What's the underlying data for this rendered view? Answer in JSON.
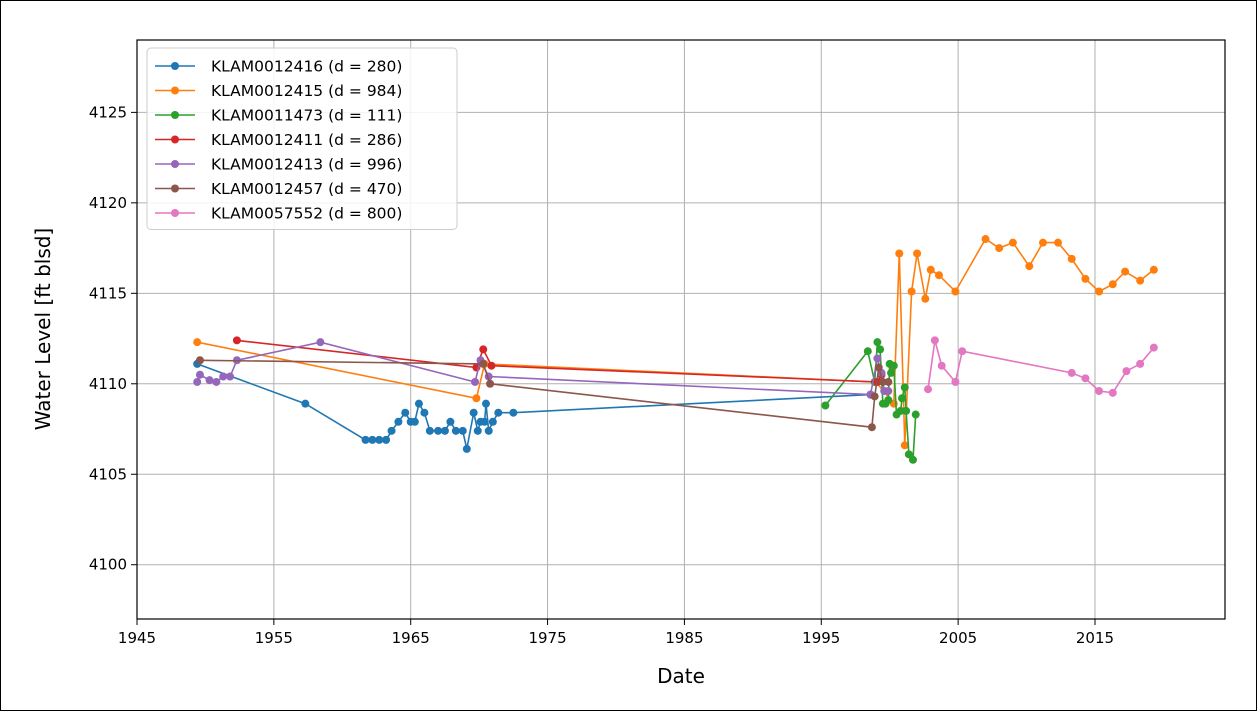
{
  "chart_data": {
    "type": "line",
    "title": "",
    "xlabel": "Date",
    "ylabel": "Water Level [ft blsd]",
    "xlim": [
      1945,
      2024.5
    ],
    "ylim": [
      4097,
      4129
    ],
    "x_ticks": [
      1945,
      1955,
      1965,
      1975,
      1985,
      1995,
      2005,
      2015
    ],
    "y_ticks": [
      4100,
      4105,
      4110,
      4115,
      4120,
      4125
    ],
    "grid": true,
    "legend_position": "upper-left",
    "marker": "circle",
    "series": [
      {
        "name": "KLAM0012416 (d = 280)",
        "color": "#1f77b4",
        "points": [
          [
            1949.4,
            4111.1
          ],
          [
            1957.3,
            4108.9
          ],
          [
            1961.7,
            4106.9
          ],
          [
            1962.2,
            4106.9
          ],
          [
            1962.7,
            4106.9
          ],
          [
            1963.2,
            4106.9
          ],
          [
            1963.6,
            4107.4
          ],
          [
            1964.1,
            4107.9
          ],
          [
            1964.6,
            4108.4
          ],
          [
            1965.0,
            4107.9
          ],
          [
            1965.3,
            4107.9
          ],
          [
            1965.6,
            4108.9
          ],
          [
            1966.0,
            4108.4
          ],
          [
            1966.4,
            4107.4
          ],
          [
            1967.0,
            4107.4
          ],
          [
            1967.5,
            4107.4
          ],
          [
            1967.9,
            4107.9
          ],
          [
            1968.3,
            4107.4
          ],
          [
            1968.8,
            4107.4
          ],
          [
            1969.1,
            4106.4
          ],
          [
            1969.6,
            4108.4
          ],
          [
            1969.9,
            4107.4
          ],
          [
            1970.1,
            4107.9
          ],
          [
            1970.4,
            4107.9
          ],
          [
            1970.5,
            4108.9
          ],
          [
            1970.7,
            4107.4
          ],
          [
            1971.0,
            4107.9
          ],
          [
            1971.4,
            4108.4
          ],
          [
            1972.5,
            4108.4
          ],
          [
            1998.6,
            4109.4
          ]
        ]
      },
      {
        "name": "KLAM0012415 (d = 984)",
        "color": "#ff7f0e",
        "points": [
          [
            1949.4,
            4112.3
          ],
          [
            1969.8,
            4109.2
          ],
          [
            1970.4,
            4111.1
          ],
          [
            1999.0,
            4110.1
          ],
          [
            2000.3,
            4108.9
          ],
          [
            2000.7,
            4117.2
          ],
          [
            2001.1,
            4106.6
          ],
          [
            2001.6,
            4115.1
          ],
          [
            2002.0,
            4117.2
          ],
          [
            2002.6,
            4114.7
          ],
          [
            2003.0,
            4116.3
          ],
          [
            2003.6,
            4116.0
          ],
          [
            2004.8,
            4115.1
          ],
          [
            2007.0,
            4118.0
          ],
          [
            2008.0,
            4117.5
          ],
          [
            2009.0,
            4117.8
          ],
          [
            2010.2,
            4116.5
          ],
          [
            2011.2,
            4117.8
          ],
          [
            2012.3,
            4117.8
          ],
          [
            2013.3,
            4116.9
          ],
          [
            2014.3,
            4115.8
          ],
          [
            2015.3,
            4115.1
          ],
          [
            2016.3,
            4115.5
          ],
          [
            2017.2,
            4116.2
          ],
          [
            2018.3,
            4115.7
          ],
          [
            2019.3,
            4116.3
          ]
        ]
      },
      {
        "name": "KLAM0011473 (d = 111)",
        "color": "#2ca02c",
        "points": [
          [
            1995.3,
            4108.8
          ],
          [
            1998.4,
            4111.8
          ],
          [
            1998.9,
            4110.1
          ],
          [
            1999.1,
            4112.3
          ],
          [
            1999.3,
            4111.9
          ],
          [
            1999.5,
            4108.9
          ],
          [
            1999.7,
            4108.9
          ],
          [
            1999.9,
            4109.1
          ],
          [
            2000.0,
            4111.1
          ],
          [
            2000.1,
            4110.6
          ],
          [
            2000.3,
            4111.0
          ],
          [
            2000.5,
            4108.3
          ],
          [
            2000.8,
            4108.5
          ],
          [
            2000.9,
            4109.2
          ],
          [
            2001.1,
            4109.8
          ],
          [
            2001.2,
            4108.5
          ],
          [
            2001.4,
            4106.1
          ],
          [
            2001.7,
            4105.8
          ],
          [
            2001.9,
            4108.3
          ]
        ]
      },
      {
        "name": "KLAM0012411 (d = 286)",
        "color": "#d62728",
        "points": [
          [
            1952.3,
            4112.4
          ],
          [
            1969.8,
            4110.9
          ],
          [
            1970.3,
            4111.9
          ],
          [
            1970.9,
            4111.0
          ],
          [
            1999.1,
            4110.1
          ],
          [
            1999.4,
            4110.5
          ]
        ]
      },
      {
        "name": "KLAM0012413 (d = 996)",
        "color": "#9467bd",
        "points": [
          [
            1949.4,
            4110.1
          ],
          [
            1949.6,
            4110.5
          ],
          [
            1950.3,
            4110.2
          ],
          [
            1950.8,
            4110.1
          ],
          [
            1951.3,
            4110.4
          ],
          [
            1951.8,
            4110.4
          ],
          [
            1952.3,
            4111.3
          ],
          [
            1958.4,
            4112.3
          ],
          [
            1969.7,
            4110.1
          ],
          [
            1970.1,
            4111.3
          ],
          [
            1970.7,
            4110.4
          ],
          [
            1998.6,
            4109.4
          ],
          [
            1999.1,
            4111.4
          ],
          [
            1999.4,
            4110.6
          ],
          [
            1999.6,
            4109.6
          ],
          [
            1999.9,
            4109.6
          ]
        ]
      },
      {
        "name": "KLAM0012457 (d = 470)",
        "color": "#8c564b",
        "points": [
          [
            1949.6,
            4111.3
          ],
          [
            1970.3,
            4111.1
          ],
          [
            1970.8,
            4110.0
          ],
          [
            1998.7,
            4107.6
          ],
          [
            1998.9,
            4109.3
          ],
          [
            1999.2,
            4110.9
          ],
          [
            1999.5,
            4110.1
          ],
          [
            1999.9,
            4110.1
          ]
        ]
      },
      {
        "name": "KLAM0057552 (d = 800)",
        "color": "#e377c2",
        "points": [
          [
            2002.8,
            4109.7
          ],
          [
            2003.3,
            4112.4
          ],
          [
            2003.8,
            4111.0
          ],
          [
            2004.8,
            4110.1
          ],
          [
            2005.3,
            4111.8
          ],
          [
            2013.3,
            4110.6
          ],
          [
            2014.3,
            4110.3
          ],
          [
            2015.3,
            4109.6
          ],
          [
            2016.3,
            4109.5
          ],
          [
            2017.3,
            4110.7
          ],
          [
            2018.3,
            4111.1
          ],
          [
            2019.3,
            4112.0
          ]
        ]
      }
    ]
  }
}
